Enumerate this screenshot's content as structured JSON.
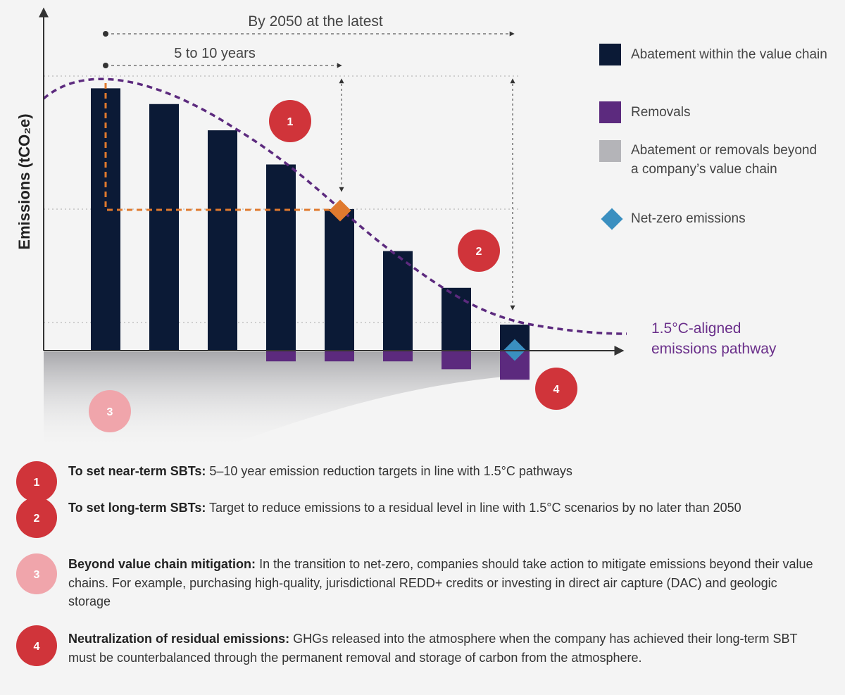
{
  "chart_data": {
    "type": "bar",
    "y_label": "Emissions (tCO₂e)",
    "series": [
      {
        "name": "Abatement within the value chain",
        "color": "#0b1a36",
        "values": [
          100,
          94,
          84,
          71,
          54,
          38,
          24,
          10
        ]
      },
      {
        "name": "Removals",
        "color": "#5c2a7e",
        "values": [
          null,
          null,
          null,
          -4,
          -4,
          -4,
          -7,
          -11
        ]
      }
    ],
    "legend_extra": [
      {
        "name": "Abatement or removals beyond a company’s value chain",
        "color": "#b4b4b8"
      },
      {
        "name": "Net-zero emissions",
        "color": "#3a8fc0"
      }
    ],
    "ylim": [
      -12,
      128
    ],
    "pathway_label": "1.5°C-aligned emissions pathway",
    "span_long": "By 2050 at the latest",
    "span_short": "5 to 10 years",
    "chart_markers": [
      1,
      2,
      3,
      4
    ],
    "notes": [
      {
        "number": 1,
        "title": "To set near-term SBTs:",
        "text": "5–10 year emission reduction targets in line with 1.5°C pathways"
      },
      {
        "number": 2,
        "title": "To set long-term SBTs:",
        "text": "Target to reduce emissions to a residual level in line with 1.5°C scenarios by no later than 2050"
      },
      {
        "number": 3,
        "title": "Beyond value chain mitigation:",
        "text": "In the transition to net-zero, companies should take action to mitigate emissions beyond their value chains. For example, purchasing high-quality, jurisdictional REDD+ credits or investing in direct air capture (DAC) and geologic storage"
      },
      {
        "number": 4,
        "title": "Neutralization of residual emissions:",
        "text": "GHGs released into the atmosphere when the company has achieved their long-term SBT must be counterbalanced through the permanent removal and storage of carbon from the atmosphere."
      }
    ]
  }
}
